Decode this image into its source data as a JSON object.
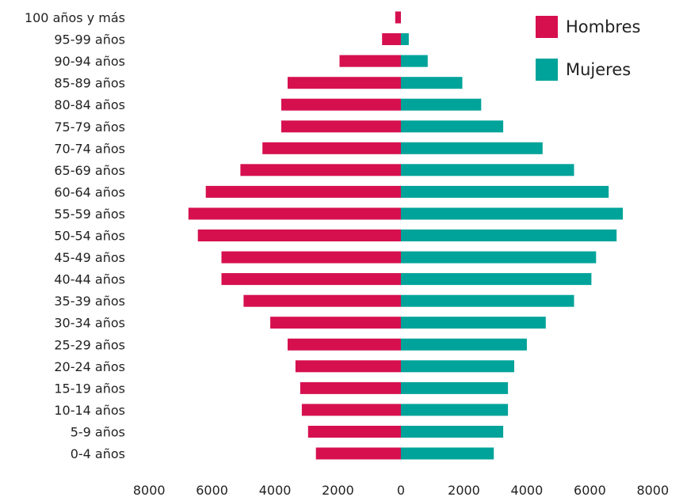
{
  "chart_data": {
    "type": "bar",
    "orientation": "horizontal",
    "variant": "population-pyramid",
    "categories": [
      "100 años y más",
      "95-99 años",
      "90-94 años",
      "85-89 años",
      "80-84 años",
      "75-79 años",
      "70-74 años",
      "65-69 años",
      "60-64 años",
      "55-59 años",
      "50-54 años",
      "45-49 años",
      "40-44 años",
      "35-39 años",
      "30-34 años",
      "25-29 años",
      "20-24 años",
      "15-19 años",
      "10-14 años",
      "5-9 años",
      "0-4 años"
    ],
    "series": [
      {
        "name": "Hombres",
        "color": "#d6104f",
        "side": "left",
        "values": [
          180,
          600,
          1950,
          3600,
          3800,
          3800,
          4400,
          5100,
          6200,
          6750,
          6450,
          5700,
          5700,
          5000,
          4150,
          3600,
          3350,
          3200,
          3150,
          2950,
          2700
        ]
      },
      {
        "name": "Mujeres",
        "color": "#00a39a",
        "side": "right",
        "values": [
          0,
          250,
          850,
          1950,
          2550,
          3250,
          4500,
          5500,
          6600,
          7050,
          6850,
          6200,
          6050,
          5500,
          4600,
          4000,
          3600,
          3400,
          3400,
          3250,
          2950
        ]
      }
    ],
    "xlim": [
      -8000,
      8000
    ],
    "xticks": [
      -8000,
      -6000,
      -4000,
      -2000,
      0,
      2000,
      4000,
      6000,
      8000
    ],
    "xtick_labels": [
      "8000",
      "6000",
      "4000",
      "2000",
      "0",
      "2000",
      "4000",
      "6000",
      "8000"
    ],
    "grid": false,
    "legend_position": "top-right",
    "title": "",
    "xlabel": "",
    "ylabel": ""
  }
}
